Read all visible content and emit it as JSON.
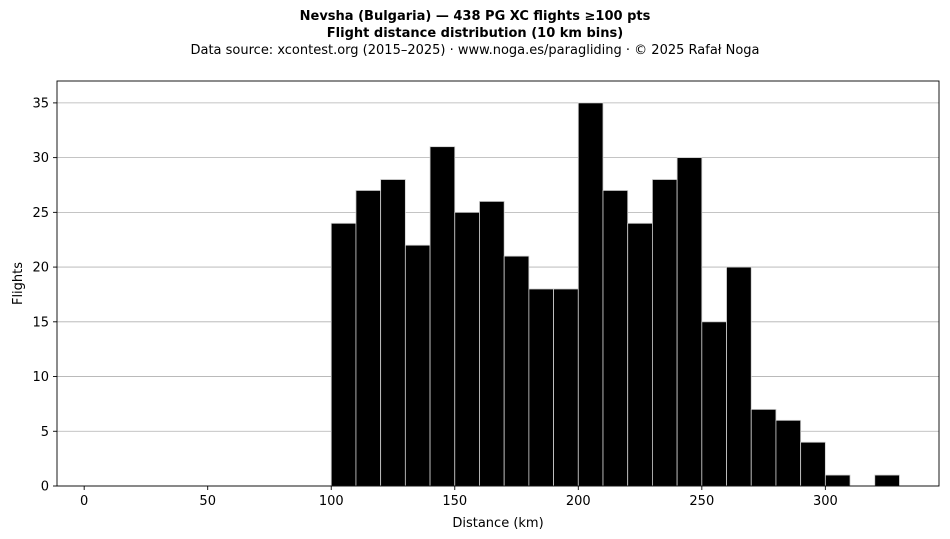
{
  "title_line1": "Nevsha (Bulgaria)  —  438 PG XC flights ≥100 pts",
  "title_line2": "Flight distance distribution (10 km bins)",
  "subtitle": "Data source: xcontest.org (2015–2025)  ·  www.noga.es/paragliding  ·  © 2025 Rafał Noga",
  "chart_data": {
    "type": "bar",
    "xlabel": "Distance (km)",
    "ylabel": "Flights",
    "bin_width": 10,
    "bin_starts": [
      100,
      110,
      120,
      130,
      140,
      150,
      160,
      170,
      180,
      190,
      200,
      210,
      220,
      230,
      240,
      250,
      260,
      270,
      280,
      290,
      300,
      310,
      320
    ],
    "values": [
      24,
      27,
      28,
      22,
      31,
      25,
      26,
      21,
      18,
      18,
      35,
      27,
      24,
      28,
      30,
      15,
      20,
      7,
      6,
      4,
      1,
      0,
      1
    ],
    "xlim": [
      -11,
      346
    ],
    "ylim": [
      0,
      37
    ],
    "xticks": [
      0,
      50,
      100,
      150,
      200,
      250,
      300
    ],
    "yticks": [
      0,
      5,
      10,
      15,
      20,
      25,
      30,
      35
    ],
    "grid": "y",
    "bar_color": "#000000",
    "bar_edge_color": "#d0d0d0"
  }
}
